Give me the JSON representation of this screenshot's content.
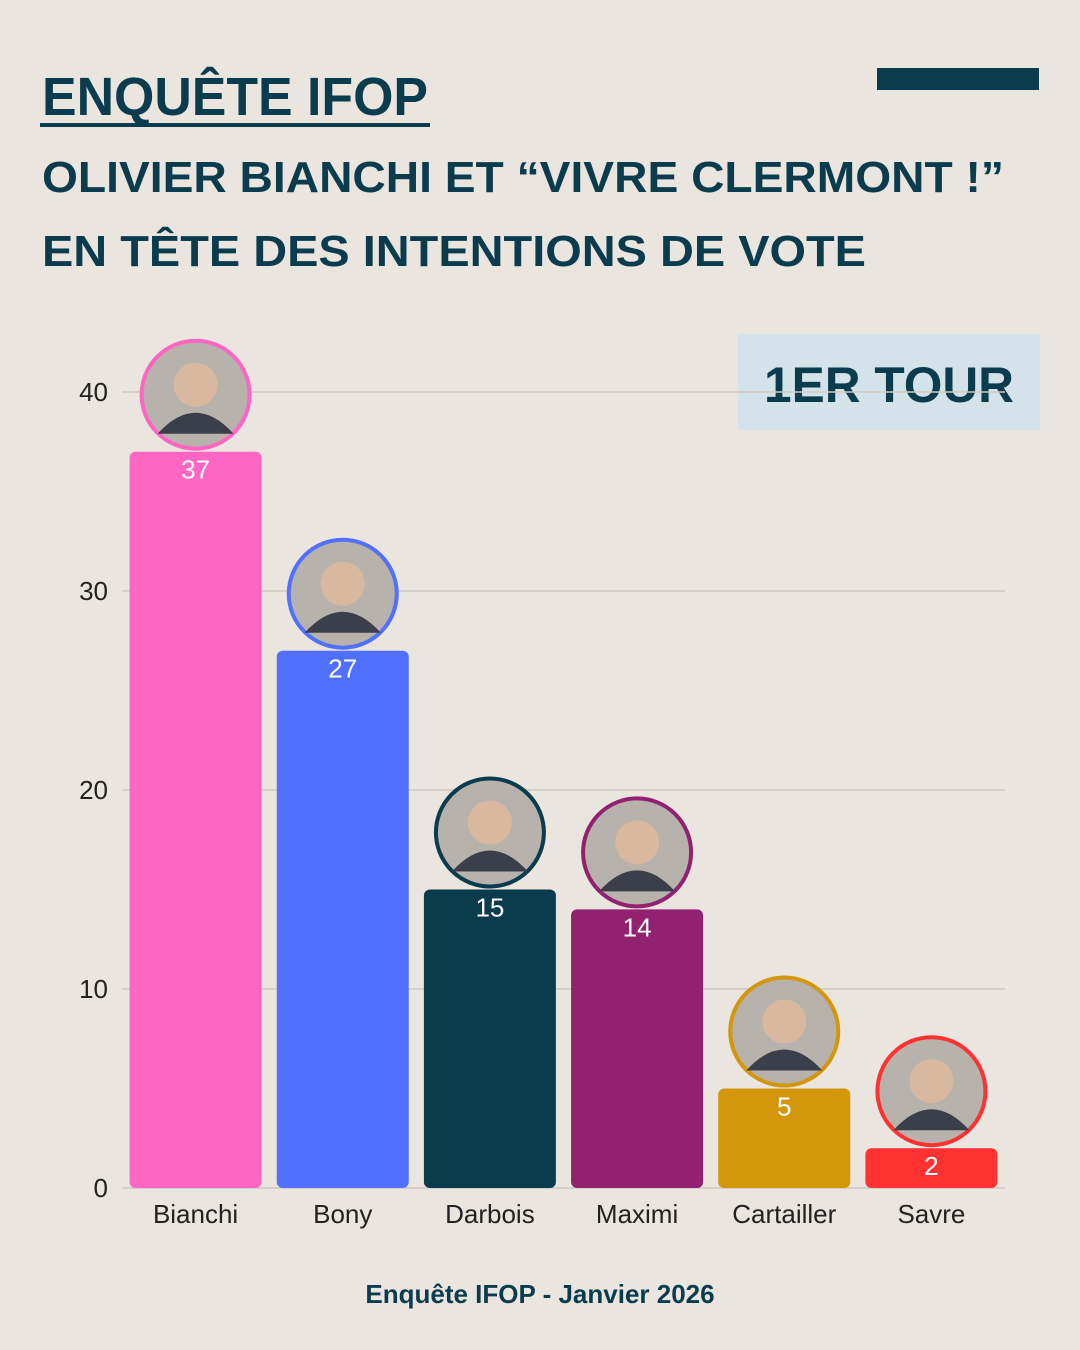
{
  "chart_data": {
    "type": "bar",
    "title": "ENQUÊTE IFOP",
    "subtitle": [
      "OLIVIER BIANCHI ET “VIVRE CLERMONT !”",
      "EN TÊTE DES INTENTIONS DE VOTE"
    ],
    "badge": "1ER TOUR",
    "source": "Enquête IFOP - Janvier 2026",
    "categories": [
      "Bianchi",
      "Bony",
      "Darbois",
      "Maximi",
      "Cartailler",
      "Savre"
    ],
    "values": [
      37,
      27,
      15,
      14,
      5,
      2
    ],
    "colors": [
      "#ff66c4",
      "#5170ff",
      "#0b3c4e",
      "#92216f",
      "#d4960a",
      "#ff3131"
    ],
    "ylim": [
      0,
      40
    ],
    "yticks": [
      0,
      10,
      20,
      30,
      40
    ],
    "grid": true
  }
}
